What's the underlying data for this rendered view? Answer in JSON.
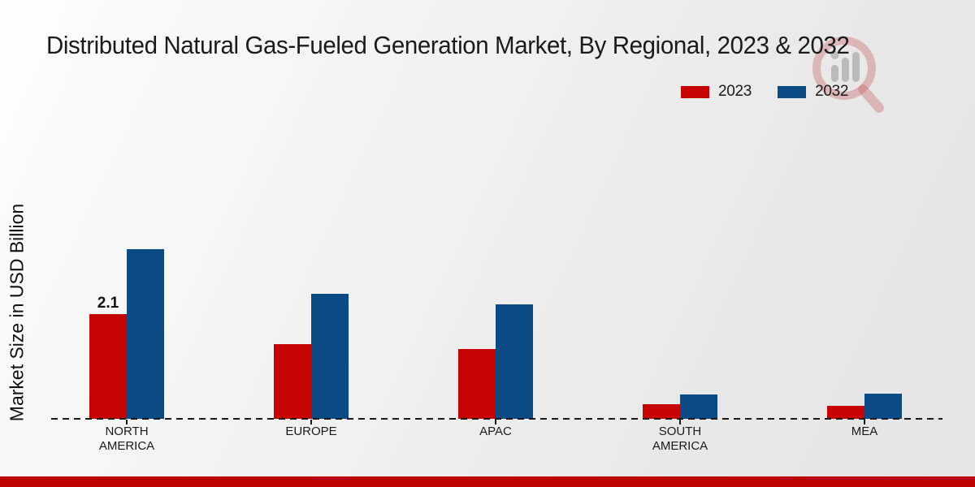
{
  "title": "Distributed Natural Gas-Fueled Generation Market, By Regional, 2023 & 2032",
  "y_axis_label": "Market Size in USD Billion",
  "legend": {
    "items": [
      {
        "label": "2023",
        "color": "#c70404"
      },
      {
        "label": "2032",
        "color": "#0b4b85"
      }
    ]
  },
  "footer": {
    "color": "#bb0303"
  },
  "watermark": {
    "icon": "magnifier-bar-chart-logo"
  },
  "chart_data": {
    "type": "bar",
    "title": "Distributed Natural Gas-Fueled Generation Market, By Regional, 2023 & 2032",
    "xlabel": "",
    "ylabel": "Market Size in USD Billion",
    "unit": "USD Billion",
    "categories": [
      "NORTH AMERICA",
      "EUROPE",
      "APAC",
      "SOUTH AMERICA",
      "MEA"
    ],
    "category_lines": [
      [
        "NORTH",
        "AMERICA"
      ],
      [
        "EUROPE"
      ],
      [
        "APAC"
      ],
      [
        "SOUTH",
        "AMERICA"
      ],
      [
        "MEA"
      ]
    ],
    "series": [
      {
        "name": "2023",
        "color": "#c70404",
        "values": [
          2.1,
          1.5,
          1.4,
          0.3,
          0.26
        ]
      },
      {
        "name": "2032",
        "color": "#0b4b85",
        "values": [
          3.4,
          2.5,
          2.3,
          0.49,
          0.5
        ]
      }
    ],
    "annotations": [
      {
        "series": 0,
        "category": 0,
        "text": "2.1"
      }
    ],
    "ylim": [
      0,
      4
    ],
    "grid": false,
    "baseline_style": "dashed",
    "legend_position": "top-right"
  }
}
